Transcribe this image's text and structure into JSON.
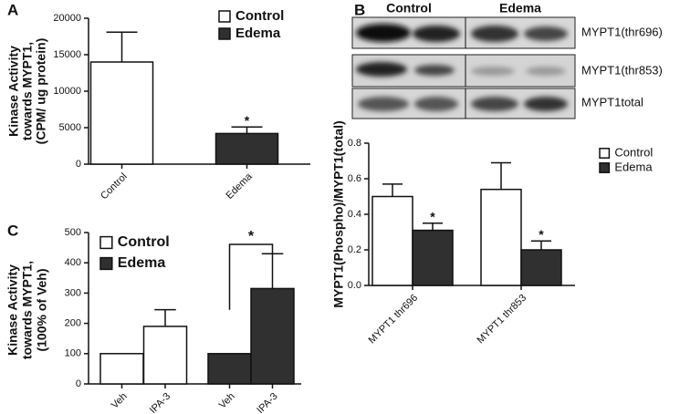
{
  "blot": {
    "groups": [
      "Control",
      "Edema"
    ],
    "rows": [
      "MYPT1(thr696)",
      "MYPT1(thr853)",
      "MYPT1total"
    ]
  },
  "chart_data": [
    {
      "type": "bar",
      "panel": "A",
      "y_label": [
        "Kinase Activity",
        "towards MYPT1,",
        "(CPM/ ug protein)"
      ],
      "categories": [
        "Control",
        "Edema"
      ],
      "series": [
        {
          "name": "Control",
          "color": "#ffffff",
          "values": [
            14000,
            null
          ],
          "errors": [
            4100,
            null
          ]
        },
        {
          "name": "Edema",
          "color": "#303030",
          "values": [
            null,
            4200
          ],
          "errors": [
            null,
            900
          ],
          "significance": [
            null,
            "*"
          ]
        }
      ],
      "ylim": [
        0,
        20000
      ],
      "yticks": [
        0,
        5000,
        10000,
        15000,
        20000
      ]
    },
    {
      "type": "bar",
      "panel": "B",
      "y_label": "MYPT1(Phospho)/MYPT1(total)",
      "categories": [
        "MYPT1 thr696",
        "MYPT1 thr853"
      ],
      "series": [
        {
          "name": "Control",
          "color": "#ffffff",
          "values": [
            0.5,
            0.54
          ],
          "errors": [
            0.07,
            0.15
          ]
        },
        {
          "name": "Edema",
          "color": "#303030",
          "values": [
            0.31,
            0.2
          ],
          "errors": [
            0.04,
            0.05
          ],
          "significance": [
            "*",
            "*"
          ]
        }
      ],
      "ylim": [
        0,
        0.8
      ],
      "yticks": [
        {
          "value": 0,
          "label": "0.0"
        },
        0.2,
        0.4,
        0.6,
        0.8
      ]
    },
    {
      "type": "bar",
      "panel": "C",
      "y_label": [
        "Kinase Activity",
        "towards MYPT1,",
        "(100% of Veh)"
      ],
      "categories": [
        "Veh",
        "IPA-3",
        "Veh",
        "IPA-3"
      ],
      "series": [
        {
          "name": "Control",
          "color": "#ffffff",
          "values": [
            100,
            190,
            null,
            null
          ],
          "errors": [
            null,
            55,
            null,
            null
          ]
        },
        {
          "name": "Edema",
          "color": "#303030",
          "values": [
            null,
            null,
            100,
            315
          ],
          "errors": [
            null,
            null,
            null,
            115
          ]
        }
      ],
      "annotation": "*",
      "ylim": [
        0,
        500
      ],
      "yticks": [
        0,
        100,
        200,
        300,
        400,
        500
      ]
    }
  ]
}
